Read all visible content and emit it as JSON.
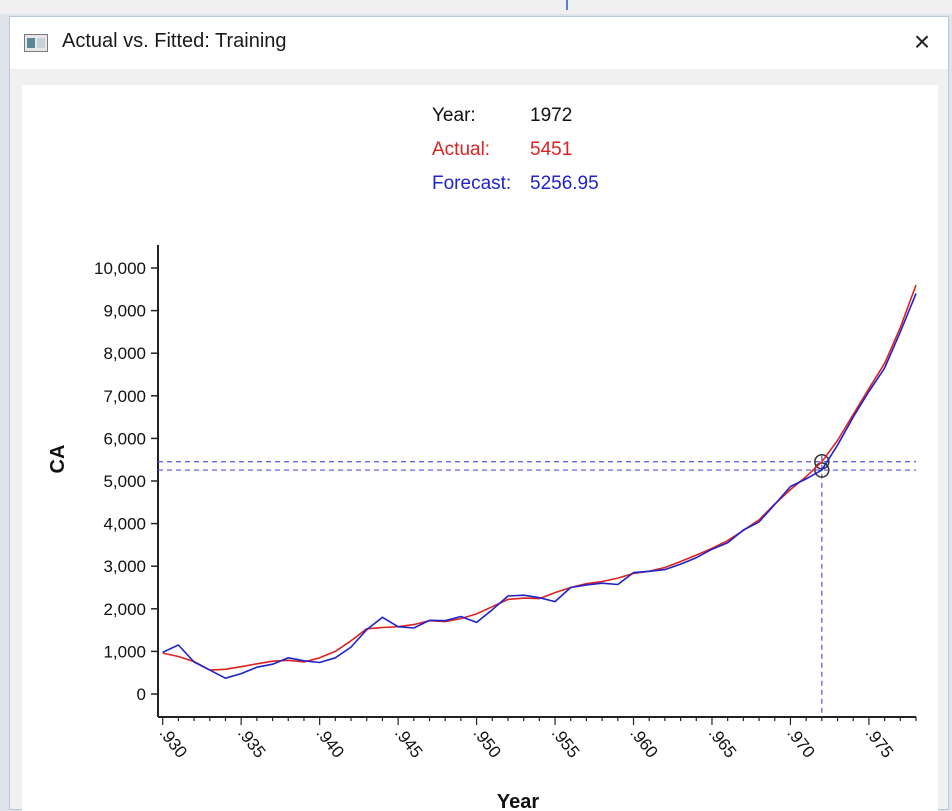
{
  "window": {
    "title": "Actual vs. Fitted: Training",
    "icon": "chart-window-icon",
    "close_glyph": "×"
  },
  "readout": {
    "year_label": "Year:",
    "year_value": "1972",
    "actual_label": "Actual:",
    "actual_value": "5451",
    "forecast_label": "Forecast:",
    "forecast_value": "5256.95"
  },
  "colors": {
    "actual": "#dd2222",
    "forecast": "#2222cc",
    "cursor": "#5555dd",
    "axis": "#222222"
  },
  "chart_data": {
    "type": "line",
    "xlabel": "Year",
    "ylabel": "CA",
    "xlim": [
      1929.7,
      1978
    ],
    "ylim": [
      0,
      10000
    ],
    "y_ticks": [
      0,
      1000,
      2000,
      3000,
      4000,
      5000,
      6000,
      7000,
      8000,
      9000,
      10000
    ],
    "y_tick_labels": [
      "0",
      "1,000",
      "2,000",
      "3,000",
      "4,000",
      "5,000",
      "6,000",
      "7,000",
      "8,000",
      "9,000",
      "10,000"
    ],
    "x_ticks": [
      1930,
      1935,
      1940,
      1945,
      1950,
      1955,
      1960,
      1965,
      1970,
      1975
    ],
    "x_tick_labels": [
      ".930",
      ".935",
      ".940",
      ".945",
      ".950",
      ".955",
      ".960",
      ".965",
      ".970",
      ".975"
    ],
    "grid": false,
    "cursor": {
      "x": 1972,
      "actual": 5451,
      "forecast": 5256.95
    },
    "series": [
      {
        "name": "Actual",
        "x": [
          1930,
          1931,
          1932,
          1933,
          1934,
          1935,
          1936,
          1937,
          1938,
          1939,
          1940,
          1941,
          1942,
          1943,
          1944,
          1945,
          1946,
          1947,
          1948,
          1949,
          1950,
          1951,
          1952,
          1953,
          1954,
          1955,
          1956,
          1957,
          1958,
          1959,
          1960,
          1961,
          1962,
          1963,
          1964,
          1965,
          1966,
          1967,
          1968,
          1969,
          1970,
          1971,
          1972,
          1973,
          1974,
          1975,
          1976,
          1977,
          1978
        ],
        "values": [
          960,
          880,
          760,
          560,
          580,
          640,
          710,
          770,
          790,
          750,
          850,
          1000,
          1250,
          1530,
          1560,
          1580,
          1630,
          1720,
          1700,
          1770,
          1880,
          2050,
          2220,
          2250,
          2240,
          2380,
          2500,
          2590,
          2640,
          2720,
          2830,
          2880,
          2970,
          3110,
          3260,
          3420,
          3600,
          3840,
          4090,
          4460,
          4800,
          5100,
          5451,
          5950,
          6560,
          7170,
          7760,
          8600,
          9600
        ]
      },
      {
        "name": "Forecast",
        "x": [
          1930,
          1931,
          1932,
          1933,
          1934,
          1935,
          1936,
          1937,
          1938,
          1939,
          1940,
          1941,
          1942,
          1943,
          1944,
          1945,
          1946,
          1947,
          1948,
          1949,
          1950,
          1951,
          1952,
          1953,
          1954,
          1955,
          1956,
          1957,
          1958,
          1959,
          1960,
          1961,
          1962,
          1963,
          1964,
          1965,
          1966,
          1967,
          1968,
          1969,
          1970,
          1971,
          1972,
          1973,
          1974,
          1975,
          1976,
          1977,
          1978
        ],
        "values": [
          980,
          1150,
          750,
          560,
          370,
          480,
          630,
          700,
          850,
          780,
          740,
          850,
          1100,
          1510,
          1800,
          1580,
          1550,
          1730,
          1720,
          1820,
          1680,
          1980,
          2300,
          2320,
          2260,
          2170,
          2500,
          2560,
          2600,
          2570,
          2850,
          2880,
          2920,
          3050,
          3200,
          3400,
          3550,
          3850,
          4040,
          4450,
          4870,
          5050,
          5256.95,
          5840,
          6500,
          7100,
          7650,
          8500,
          9400
        ]
      }
    ]
  }
}
